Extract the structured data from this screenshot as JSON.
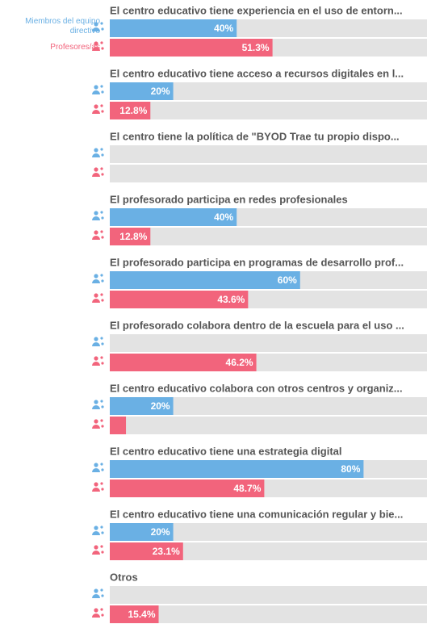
{
  "chart_data": {
    "type": "bar",
    "orientation": "horizontal",
    "categories": [
      "El centro educativo tiene experiencia en el uso de entorn...",
      "El centro educativo tiene acceso a recursos digitales en l...",
      "El centro tiene la política de \"BYOD Trae tu propio dispo...",
      "El profesorado participa en redes profesionales",
      "El profesorado participa en programas de desarrollo prof...",
      "El profesorado colabora dentro de la escuela para el uso ...",
      "El centro educativo colabora con otros centros y organiz...",
      "El centro educativo tiene una estrategia digital",
      "El centro educativo tiene una comunicación regular y bie...",
      "Otros"
    ],
    "series": [
      {
        "name": "Miembros del equipo directivo",
        "color": "#6ab0e4",
        "values": [
          40,
          20,
          0,
          40,
          60,
          0,
          20,
          80,
          20,
          0
        ],
        "value_labels": [
          "40%",
          "20%",
          null,
          "40%",
          "60%",
          null,
          "20%",
          "80%",
          "20%",
          null
        ]
      },
      {
        "name": "Profesores/as",
        "color": "#f2647c",
        "values": [
          51.3,
          12.8,
          0,
          12.8,
          43.6,
          46.2,
          5.1,
          48.7,
          23.1,
          15.4
        ],
        "value_labels": [
          "51.3%",
          "12.8%",
          null,
          "12.8%",
          "43.6%",
          "46.2%",
          null,
          "48.7%",
          "23.1%",
          "15.4%"
        ]
      }
    ],
    "xlim": [
      0,
      100
    ]
  }
}
